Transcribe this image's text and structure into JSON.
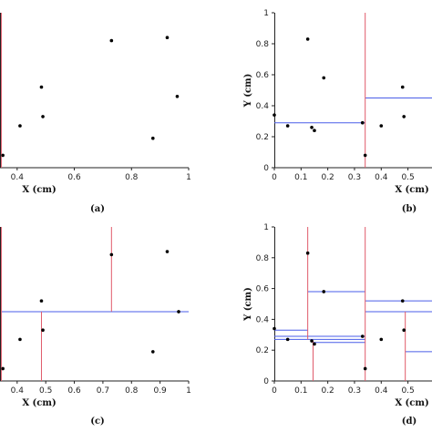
{
  "chart_data": [
    {
      "type": "scatter",
      "panel_label": "(a)",
      "xlabel": "X (cm)",
      "ylabel": "",
      "xlim": [
        0.34,
        1.0
      ],
      "ylim": [
        0,
        1
      ],
      "x_ticks": [
        "0.4",
        "0.6",
        "0.8",
        "1"
      ],
      "y_ticks": [],
      "points": [
        {
          "x": 0.33,
          "y": 0.3
        },
        {
          "x": 0.35,
          "y": 0.08
        },
        {
          "x": 0.41,
          "y": 0.27
        },
        {
          "x": 0.485,
          "y": 0.52
        },
        {
          "x": 0.49,
          "y": 0.33
        },
        {
          "x": 0.73,
          "y": 0.82
        },
        {
          "x": 0.875,
          "y": 0.19
        },
        {
          "x": 0.925,
          "y": 0.84
        },
        {
          "x": 0.96,
          "y": 0.46
        }
      ],
      "vsplits": [
        {
          "x": 0.345,
          "y0": 0,
          "y1": 1
        }
      ],
      "hsplits": []
    },
    {
      "type": "scatter",
      "panel_label": "(b)",
      "xlabel": "X (cm)",
      "ylabel": "Y (cm)",
      "xlim": [
        0,
        0.59
      ],
      "ylim": [
        0,
        1
      ],
      "x_ticks": [
        "0",
        "0.1",
        "0.2",
        "0.3",
        "0.4",
        "0.5"
      ],
      "y_ticks": [
        "0",
        "0.2",
        "0.4",
        "0.6",
        "0.8",
        "1"
      ],
      "points": [
        {
          "x": 0.0,
          "y": 0.34
        },
        {
          "x": 0.05,
          "y": 0.27
        },
        {
          "x": 0.125,
          "y": 0.83
        },
        {
          "x": 0.14,
          "y": 0.26
        },
        {
          "x": 0.15,
          "y": 0.24
        },
        {
          "x": 0.185,
          "y": 0.58
        },
        {
          "x": 0.33,
          "y": 0.29
        },
        {
          "x": 0.34,
          "y": 0.08
        },
        {
          "x": 0.4,
          "y": 0.27
        },
        {
          "x": 0.48,
          "y": 0.52
        },
        {
          "x": 0.485,
          "y": 0.33
        }
      ],
      "vsplits": [
        {
          "x": 0.34,
          "y0": 0,
          "y1": 1
        }
      ],
      "hsplits": [
        {
          "y": 0.29,
          "x0": 0,
          "x1": 0.34
        },
        {
          "y": 0.45,
          "x0": 0.34,
          "x1": 0.59
        }
      ]
    },
    {
      "type": "scatter",
      "panel_label": "(c)",
      "xlabel": "X (cm)",
      "ylabel": "",
      "xlim": [
        0.34,
        1.0
      ],
      "ylim": [
        0,
        1
      ],
      "x_ticks": [
        "0.4",
        "0.5",
        "0.6",
        "0.7",
        "0.8",
        "0.9",
        "1"
      ],
      "y_ticks": [],
      "points": [
        {
          "x": 0.33,
          "y": 0.3
        },
        {
          "x": 0.35,
          "y": 0.08
        },
        {
          "x": 0.41,
          "y": 0.27
        },
        {
          "x": 0.485,
          "y": 0.52
        },
        {
          "x": 0.49,
          "y": 0.33
        },
        {
          "x": 0.73,
          "y": 0.82
        },
        {
          "x": 0.875,
          "y": 0.19
        },
        {
          "x": 0.925,
          "y": 0.84
        },
        {
          "x": 0.965,
          "y": 0.45
        }
      ],
      "vsplits": [
        {
          "x": 0.345,
          "y0": 0,
          "y1": 1
        },
        {
          "x": 0.485,
          "y0": 0,
          "y1": 0.45
        },
        {
          "x": 0.73,
          "y0": 0.45,
          "y1": 1
        }
      ],
      "hsplits": [
        {
          "y": 0.45,
          "x0": 0.345,
          "x1": 1.0
        }
      ]
    },
    {
      "type": "scatter",
      "panel_label": "(d)",
      "xlabel": "X (cm)",
      "ylabel": "Y (cm)",
      "xlim": [
        0,
        0.59
      ],
      "ylim": [
        0,
        1
      ],
      "x_ticks": [
        "0",
        "0.1",
        "0.2",
        "0.3",
        "0.4",
        "0.5"
      ],
      "y_ticks": [
        "0",
        "0.2",
        "0.4",
        "0.6",
        "0.8",
        "1"
      ],
      "points": [
        {
          "x": 0.0,
          "y": 0.34
        },
        {
          "x": 0.05,
          "y": 0.27
        },
        {
          "x": 0.125,
          "y": 0.83
        },
        {
          "x": 0.14,
          "y": 0.26
        },
        {
          "x": 0.15,
          "y": 0.24
        },
        {
          "x": 0.185,
          "y": 0.58
        },
        {
          "x": 0.33,
          "y": 0.29
        },
        {
          "x": 0.34,
          "y": 0.08
        },
        {
          "x": 0.4,
          "y": 0.27
        },
        {
          "x": 0.48,
          "y": 0.52
        },
        {
          "x": 0.485,
          "y": 0.33
        }
      ],
      "vsplits": [
        {
          "x": 0.125,
          "y0": 0.27,
          "y1": 1
        },
        {
          "x": 0.145,
          "y0": 0,
          "y1": 0.26
        },
        {
          "x": 0.34,
          "y0": 0,
          "y1": 1
        },
        {
          "x": 0.49,
          "y0": 0,
          "y1": 0.45
        }
      ],
      "hsplits": [
        {
          "y": 0.33,
          "x0": 0,
          "x1": 0.125
        },
        {
          "y": 0.29,
          "x0": 0,
          "x1": 0.34
        },
        {
          "y": 0.27,
          "x0": 0,
          "x1": 0.34
        },
        {
          "y": 0.58,
          "x0": 0.125,
          "x1": 0.34
        },
        {
          "y": 0.25,
          "x0": 0.145,
          "x1": 0.34
        },
        {
          "y": 0.52,
          "x0": 0.34,
          "x1": 0.59
        },
        {
          "y": 0.45,
          "x0": 0.34,
          "x1": 0.59
        },
        {
          "y": 0.19,
          "x0": 0.49,
          "x1": 0.59
        }
      ]
    }
  ],
  "colors": {
    "split_vertical": "#e05a6a",
    "split_horizontal": "#4a5ee8",
    "point": "#000000",
    "axis": "#222222"
  }
}
